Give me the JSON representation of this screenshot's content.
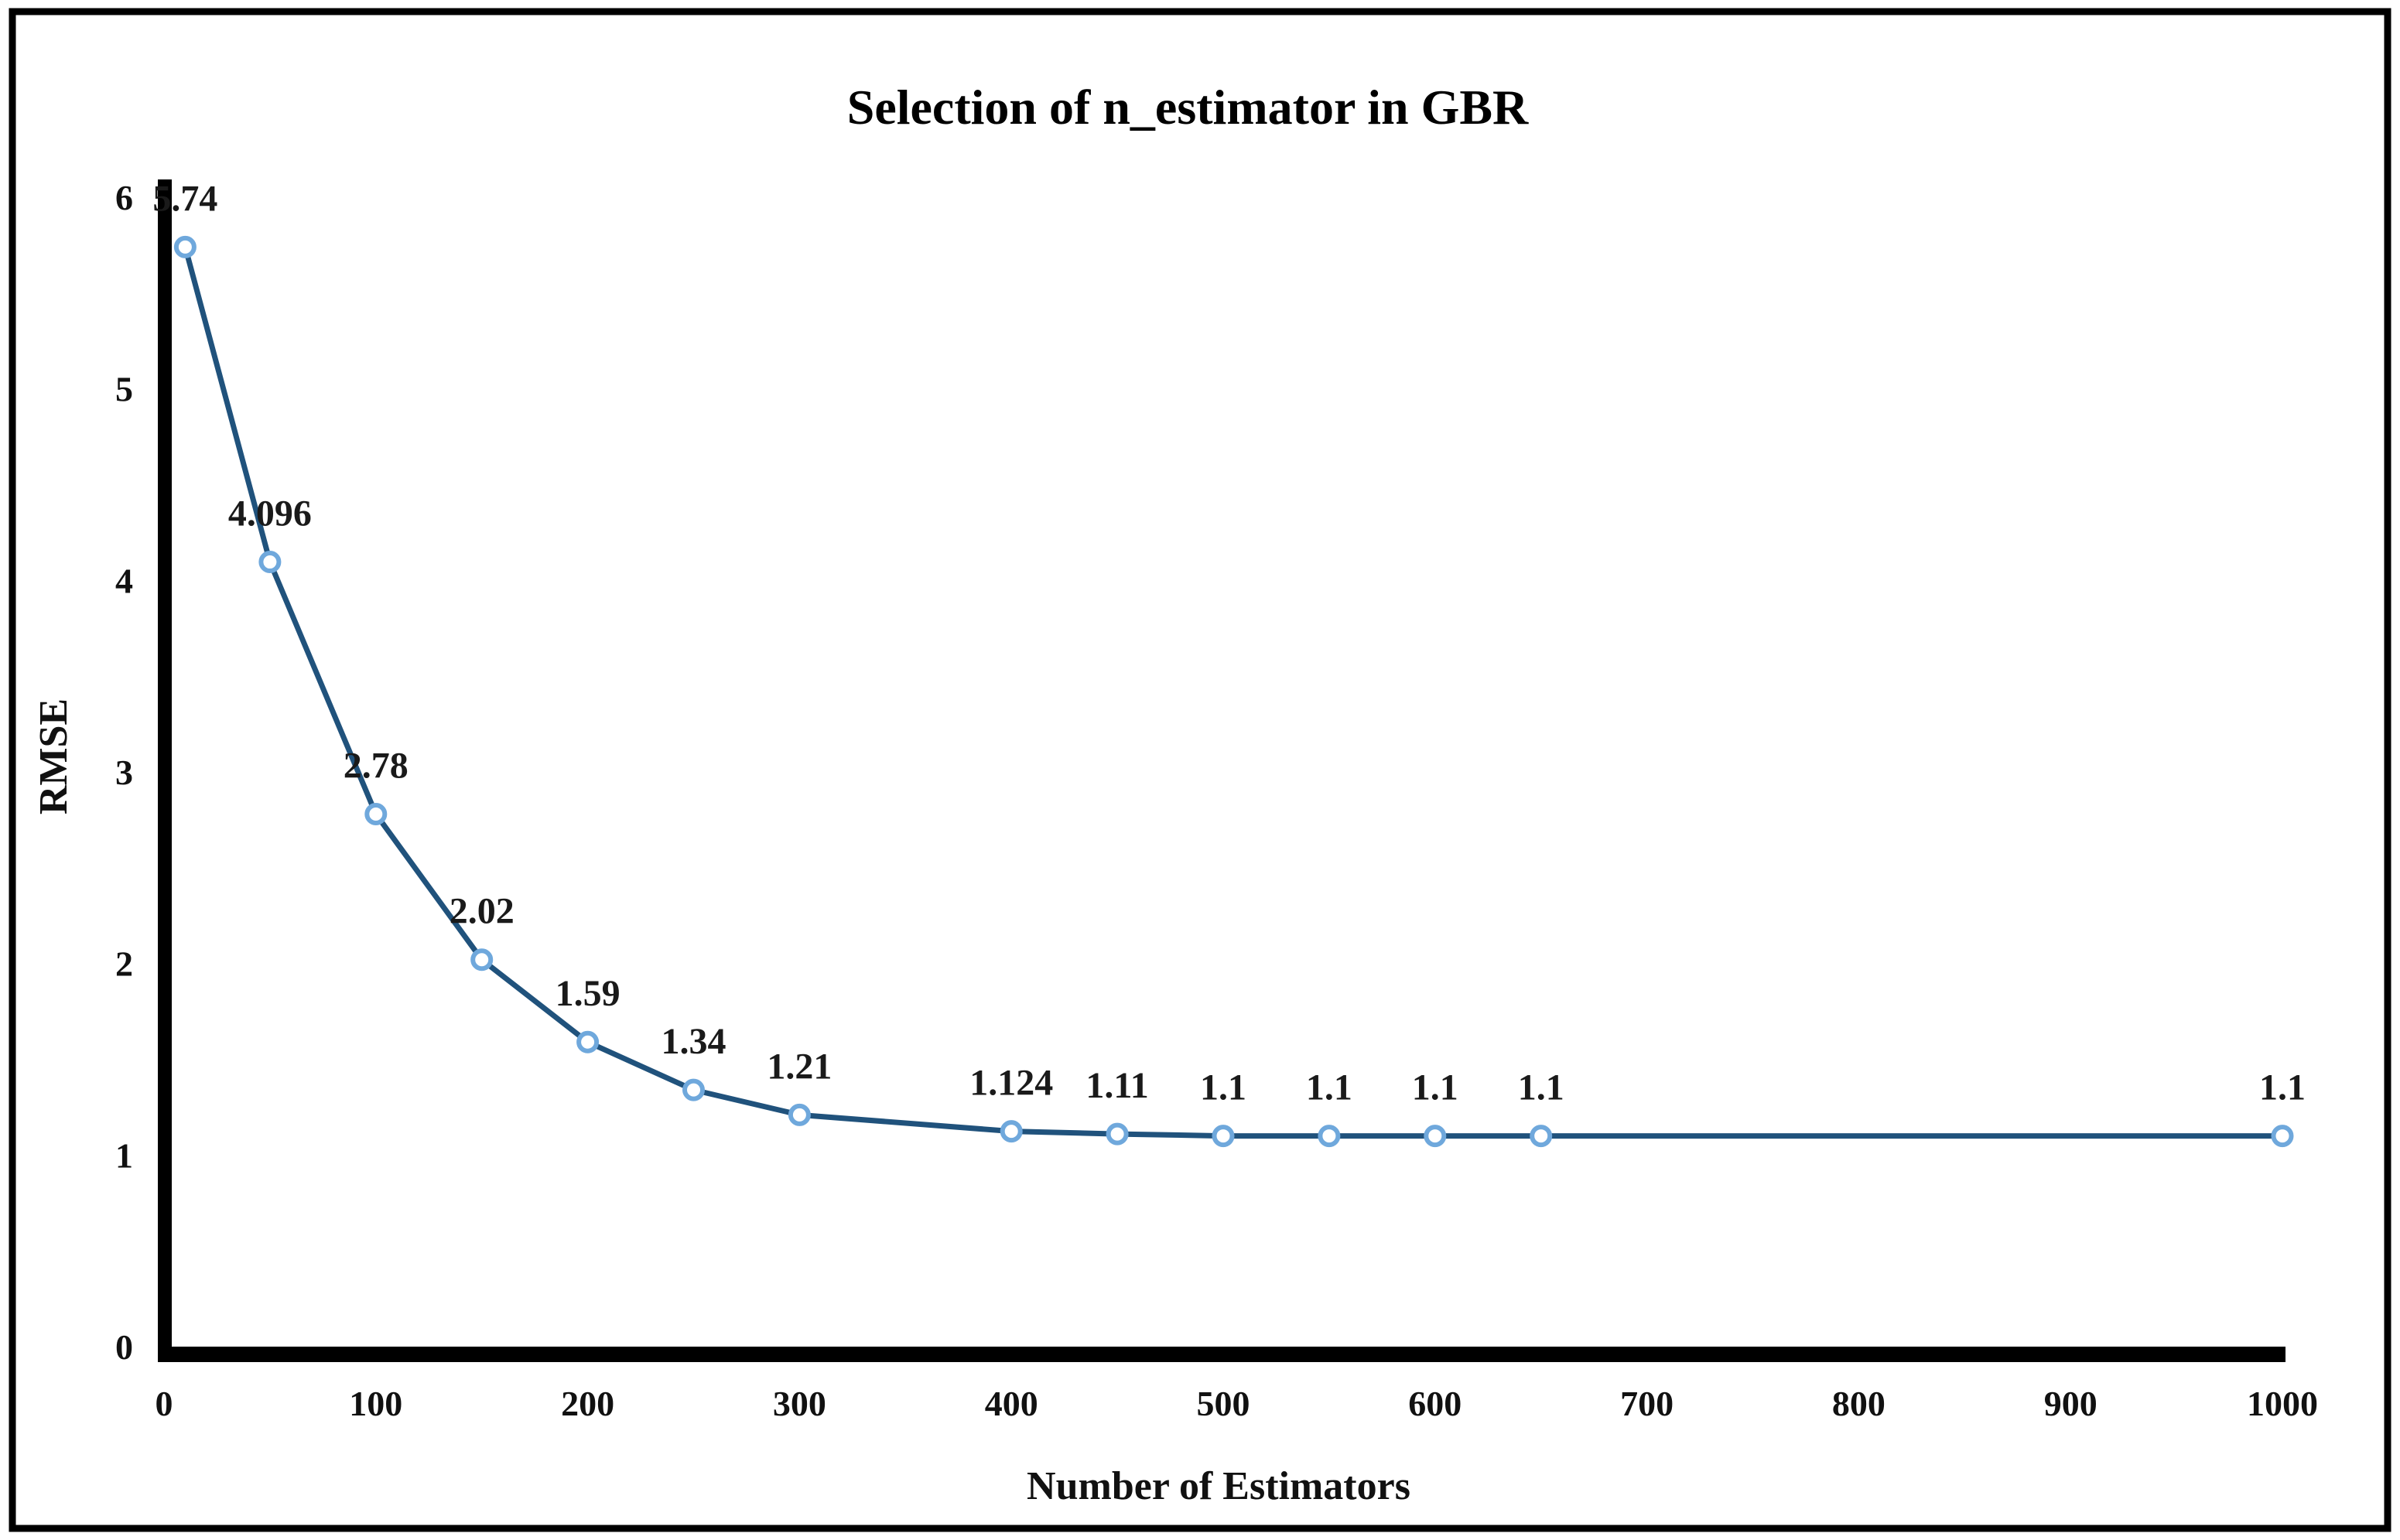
{
  "figure": {
    "background": "#ffffff",
    "border_color": "#000000",
    "border_width": 9
  },
  "chart_data": {
    "type": "line",
    "title": "Selection of n_estimator in GBR",
    "xlabel": "Number of Estimators",
    "ylabel": "RMSE",
    "x": [
      10,
      50,
      100,
      150,
      200,
      250,
      300,
      400,
      450,
      500,
      550,
      600,
      650,
      1000
    ],
    "y": [
      5.74,
      4.096,
      2.78,
      2.02,
      1.59,
      1.34,
      1.21,
      1.124,
      1.11,
      1.1,
      1.1,
      1.1,
      1.1,
      1.1
    ],
    "point_labels": [
      "5.74",
      "4.096",
      "2.78",
      "2.02",
      "1.59",
      "1.34",
      "1.21",
      "1.124",
      "1.11",
      "1.1",
      "1.1",
      "1.1",
      "1.1",
      "1.1"
    ],
    "x_ticks": [
      0,
      100,
      200,
      300,
      400,
      500,
      600,
      700,
      800,
      900,
      1000
    ],
    "y_ticks": [
      0,
      1,
      2,
      3,
      4,
      5,
      6
    ],
    "xlim": [
      0,
      1000
    ],
    "ylim": [
      0,
      6
    ],
    "grid": false,
    "legend_position": "none",
    "line_color": "#20527C",
    "marker_color": "#6FA8DC",
    "marker_fill": "#FFFFFF",
    "axis_color": "#000000",
    "label_position": "above"
  }
}
